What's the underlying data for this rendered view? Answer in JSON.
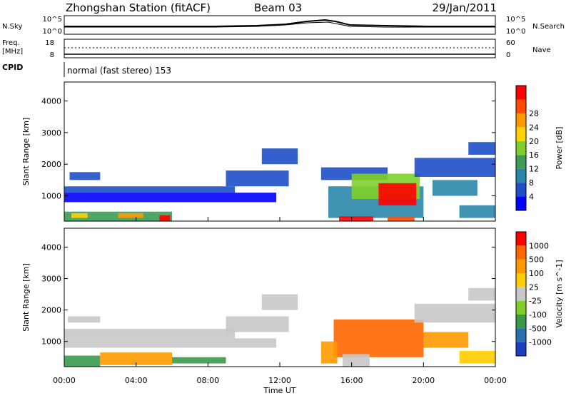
{
  "header": {
    "station": "Zhongshan Station (fitACF)",
    "beam": "Beam 03",
    "date": "29/Jan/2011"
  },
  "status_panels": {
    "nsky_label": "N.Sky",
    "nsearch_label": "N.Search",
    "freq_label": "Freq.",
    "freq_unit": "[MHz]",
    "nave_label": "Nave",
    "cpid_label": "CPID",
    "cpid_text": "normal (fast stereo) 153",
    "noise_ticks_left": [
      "10^5",
      "10^0"
    ],
    "noise_ticks_right": [
      "10^5",
      "10^0"
    ],
    "freq_ticks": [
      "18",
      "8"
    ],
    "nave_ticks": [
      "60",
      "0"
    ]
  },
  "chart_data": [
    {
      "type": "heatmap",
      "panel": "power",
      "xlabel": "",
      "ylabel": "Slant Range [km]",
      "x_ticks": [
        "00:00",
        "04:00",
        "08:00",
        "12:00",
        "16:00",
        "20:00",
        "00:00"
      ],
      "x_range_hours": [
        0,
        24
      ],
      "y_ticks": [
        1000,
        2000,
        3000,
        4000
      ],
      "y_range_km": [
        200,
        4600
      ],
      "colorbar": {
        "label": "Power [dB]",
        "ticks": [
          "4",
          "8",
          "12",
          "16",
          "20",
          "24",
          "28"
        ],
        "colors": [
          "#0000ff",
          "#1e4fc8",
          "#2a86a8",
          "#3d9c55",
          "#7fd02a",
          "#ffd200",
          "#ff9900",
          "#ff4a00",
          "#ff0000"
        ]
      },
      "regions": [
        {
          "t0": 0.3,
          "t1": 2.0,
          "r0": 1500,
          "r1": 1750,
          "level": 1
        },
        {
          "t0": 0.0,
          "t1": 9.5,
          "r0": 1100,
          "r1": 1300,
          "level": 1
        },
        {
          "t0": 0.0,
          "t1": 11.8,
          "r0": 800,
          "r1": 1100,
          "level": 0
        },
        {
          "t0": 9.0,
          "t1": 12.5,
          "r0": 1300,
          "r1": 1800,
          "level": 1
        },
        {
          "t0": 11.0,
          "t1": 13.0,
          "r0": 2000,
          "r1": 2500,
          "level": 1
        },
        {
          "t0": 0.0,
          "t1": 6.0,
          "r0": 200,
          "r1": 500,
          "level": 3
        },
        {
          "t0": 0.4,
          "t1": 1.3,
          "r0": 300,
          "r1": 450,
          "level": 5
        },
        {
          "t0": 3.0,
          "t1": 4.4,
          "r0": 300,
          "r1": 450,
          "level": 6
        },
        {
          "t0": 5.3,
          "t1": 5.9,
          "r0": 200,
          "r1": 380,
          "level": 8
        },
        {
          "t0": 14.3,
          "t1": 18.0,
          "r0": 1500,
          "r1": 1900,
          "level": 1
        },
        {
          "t0": 14.7,
          "t1": 20.0,
          "r0": 300,
          "r1": 1300,
          "level": 2
        },
        {
          "t0": 16.0,
          "t1": 19.8,
          "r0": 900,
          "r1": 1700,
          "level": 4
        },
        {
          "t0": 17.5,
          "t1": 19.6,
          "r0": 700,
          "r1": 1400,
          "level": 8
        },
        {
          "t0": 15.3,
          "t1": 17.2,
          "r0": 200,
          "r1": 350,
          "level": 8
        },
        {
          "t0": 18.0,
          "t1": 19.5,
          "r0": 200,
          "r1": 330,
          "level": 7
        },
        {
          "t0": 19.5,
          "t1": 24.0,
          "r0": 1600,
          "r1": 2200,
          "level": 1
        },
        {
          "t0": 20.5,
          "t1": 23.0,
          "r0": 1000,
          "r1": 1500,
          "level": 2
        },
        {
          "t0": 22.0,
          "t1": 24.0,
          "r0": 300,
          "r1": 700,
          "level": 2
        },
        {
          "t0": 22.5,
          "t1": 24.0,
          "r0": 2300,
          "r1": 2700,
          "level": 1
        }
      ]
    },
    {
      "type": "heatmap",
      "panel": "velocity",
      "xlabel": "Time UT",
      "ylabel": "Slant Range [km]",
      "x_ticks": [
        "00:00",
        "04:00",
        "08:00",
        "12:00",
        "16:00",
        "20:00",
        "00:00"
      ],
      "x_range_hours": [
        0,
        24
      ],
      "y_ticks": [
        1000,
        2000,
        3000,
        4000
      ],
      "y_range_km": [
        200,
        4600
      ],
      "colorbar": {
        "label": "Velocity [m s^-1]",
        "ticks": [
          "1000",
          "500",
          "100",
          "25",
          "-25",
          "-100",
          "-500",
          "-1000"
        ],
        "colors": [
          "#1a3fc2",
          "#2a6fb0",
          "#3a9a4a",
          "#7fd02a",
          "#c8c8c8",
          "#ffcc00",
          "#ff9900",
          "#ff6600",
          "#ff0000"
        ]
      },
      "regions": [
        {
          "t0": 0.0,
          "t1": 9.5,
          "r0": 1100,
          "r1": 1400,
          "level": 4
        },
        {
          "t0": 0.2,
          "t1": 2.0,
          "r0": 1600,
          "r1": 1800,
          "level": 4
        },
        {
          "t0": 0.0,
          "t1": 11.8,
          "r0": 800,
          "r1": 1100,
          "level": 4
        },
        {
          "t0": 9.0,
          "t1": 12.5,
          "r0": 1300,
          "r1": 1800,
          "level": 4
        },
        {
          "t0": 11.0,
          "t1": 13.0,
          "r0": 2000,
          "r1": 2500,
          "level": 4
        },
        {
          "t0": 0.0,
          "t1": 2.0,
          "r0": 200,
          "r1": 550,
          "level": 2
        },
        {
          "t0": 2.0,
          "t1": 6.0,
          "r0": 250,
          "r1": 650,
          "level": 6
        },
        {
          "t0": 6.0,
          "t1": 9.0,
          "r0": 300,
          "r1": 500,
          "level": 2
        },
        {
          "t0": 15.0,
          "t1": 20.0,
          "r0": 500,
          "r1": 1700,
          "level": 7
        },
        {
          "t0": 15.5,
          "t1": 17.0,
          "r0": 200,
          "r1": 600,
          "level": 4
        },
        {
          "t0": 14.3,
          "t1": 15.2,
          "r0": 300,
          "r1": 1000,
          "level": 6
        },
        {
          "t0": 20.0,
          "t1": 22.5,
          "r0": 800,
          "r1": 1300,
          "level": 6
        },
        {
          "t0": 19.5,
          "t1": 24.0,
          "r0": 1600,
          "r1": 2200,
          "level": 4
        },
        {
          "t0": 22.5,
          "t1": 24.0,
          "r0": 2300,
          "r1": 2700,
          "level": 4
        },
        {
          "t0": 22.0,
          "t1": 24.0,
          "r0": 300,
          "r1": 700,
          "level": 5
        }
      ]
    }
  ]
}
